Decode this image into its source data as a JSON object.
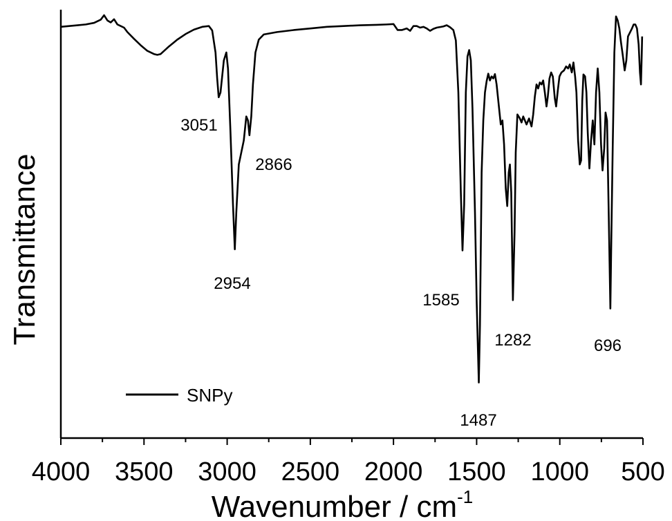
{
  "chart_data": {
    "type": "line",
    "xlabel": "Wavenumber / cm",
    "xlabel_sup": "-1",
    "ylabel": "Transmittance",
    "xlim": [
      4000,
      500
    ],
    "x_reversed": true,
    "ylim": [
      0,
      100
    ],
    "y_ticks_shown": false,
    "grid": false,
    "legend_position": "bottom-left",
    "x_ticks": [
      {
        "value": 4000,
        "label": "4000"
      },
      {
        "value": 3500,
        "label": "3500"
      },
      {
        "value": 3000,
        "label": "3000"
      },
      {
        "value": 2500,
        "label": "2500"
      },
      {
        "value": 2000,
        "label": "2000"
      },
      {
        "value": 1500,
        "label": "1500"
      },
      {
        "value": 1000,
        "label": "1000"
      },
      {
        "value": 500,
        "label": "500"
      }
    ],
    "series": [
      {
        "name": "SNPy",
        "color": "#000000",
        "points": [
          [
            4000,
            96.4
          ],
          [
            3950,
            96.6
          ],
          [
            3900,
            96.8
          ],
          [
            3850,
            97.0
          ],
          [
            3800,
            97.4
          ],
          [
            3760,
            98.2
          ],
          [
            3740,
            99.3
          ],
          [
            3720,
            98.0
          ],
          [
            3700,
            97.5
          ],
          [
            3680,
            98.3
          ],
          [
            3660,
            97.0
          ],
          [
            3640,
            96.6
          ],
          [
            3620,
            96.2
          ],
          [
            3600,
            95.1
          ],
          [
            3560,
            93.4
          ],
          [
            3520,
            91.8
          ],
          [
            3480,
            90.4
          ],
          [
            3440,
            89.6
          ],
          [
            3420,
            89.4
          ],
          [
            3400,
            89.6
          ],
          [
            3350,
            91.5
          ],
          [
            3300,
            93.2
          ],
          [
            3250,
            94.6
          ],
          [
            3200,
            95.7
          ],
          [
            3150,
            96.4
          ],
          [
            3110,
            96.6
          ],
          [
            3090,
            95.5
          ],
          [
            3070,
            90.0
          ],
          [
            3060,
            83.5
          ],
          [
            3051,
            78.8
          ],
          [
            3040,
            80.0
          ],
          [
            3020,
            88.0
          ],
          [
            3005,
            90.0
          ],
          [
            2995,
            86.0
          ],
          [
            2980,
            70.0
          ],
          [
            2965,
            52.0
          ],
          [
            2954,
            40.8
          ],
          [
            2945,
            50.0
          ],
          [
            2930,
            62.0
          ],
          [
            2915,
            65.0
          ],
          [
            2900,
            68.0
          ],
          [
            2885,
            74.0
          ],
          [
            2875,
            73.0
          ],
          [
            2866,
            69.3
          ],
          [
            2855,
            74.0
          ],
          [
            2845,
            82.0
          ],
          [
            2830,
            90.0
          ],
          [
            2810,
            93.2
          ],
          [
            2780,
            94.5
          ],
          [
            2700,
            95.1
          ],
          [
            2600,
            95.6
          ],
          [
            2500,
            96.0
          ],
          [
            2400,
            96.4
          ],
          [
            2300,
            96.6
          ],
          [
            2200,
            96.8
          ],
          [
            2100,
            96.9
          ],
          [
            2040,
            97.0
          ],
          [
            2000,
            97.1
          ],
          [
            1990,
            96.5
          ],
          [
            1975,
            95.6
          ],
          [
            1950,
            95.6
          ],
          [
            1920,
            96.0
          ],
          [
            1900,
            95.4
          ],
          [
            1880,
            96.6
          ],
          [
            1860,
            96.6
          ],
          [
            1840,
            96.2
          ],
          [
            1820,
            96.4
          ],
          [
            1800,
            96.0
          ],
          [
            1780,
            95.4
          ],
          [
            1760,
            95.9
          ],
          [
            1740,
            96.2
          ],
          [
            1700,
            96.5
          ],
          [
            1680,
            96.8
          ],
          [
            1660,
            96.3
          ],
          [
            1640,
            95.6
          ],
          [
            1625,
            93.0
          ],
          [
            1610,
            80.0
          ],
          [
            1595,
            55.0
          ],
          [
            1585,
            40.5
          ],
          [
            1575,
            52.0
          ],
          [
            1565,
            80.0
          ],
          [
            1555,
            89.0
          ],
          [
            1545,
            90.6
          ],
          [
            1535,
            88.0
          ],
          [
            1525,
            76.0
          ],
          [
            1510,
            50.0
          ],
          [
            1500,
            28.0
          ],
          [
            1495,
            20.0
          ],
          [
            1487,
            7.5
          ],
          [
            1480,
            22.0
          ],
          [
            1470,
            60.0
          ],
          [
            1460,
            73.0
          ],
          [
            1450,
            80.0
          ],
          [
            1440,
            82.8
          ],
          [
            1430,
            84.7
          ],
          [
            1420,
            83.0
          ],
          [
            1410,
            84.0
          ],
          [
            1400,
            83.5
          ],
          [
            1390,
            84.6
          ],
          [
            1380,
            82.0
          ],
          [
            1365,
            76.0
          ],
          [
            1355,
            72.0
          ],
          [
            1345,
            73.0
          ],
          [
            1335,
            67.0
          ],
          [
            1325,
            56.0
          ],
          [
            1316,
            51.6
          ],
          [
            1307,
            60.0
          ],
          [
            1300,
            62.0
          ],
          [
            1292,
            55.0
          ],
          [
            1282,
            28.1
          ],
          [
            1272,
            45.0
          ],
          [
            1265,
            65.0
          ],
          [
            1255,
            74.5
          ],
          [
            1240,
            73.5
          ],
          [
            1230,
            72.5
          ],
          [
            1220,
            74.0
          ],
          [
            1200,
            72.0
          ],
          [
            1185,
            73.5
          ],
          [
            1170,
            71.5
          ],
          [
            1160,
            74.5
          ],
          [
            1150,
            79.0
          ],
          [
            1140,
            82.0
          ],
          [
            1130,
            81.0
          ],
          [
            1120,
            82.5
          ],
          [
            1110,
            82.0
          ],
          [
            1100,
            83.0
          ],
          [
            1090,
            80.0
          ],
          [
            1080,
            76.5
          ],
          [
            1072,
            79.0
          ],
          [
            1062,
            83.5
          ],
          [
            1052,
            85.0
          ],
          [
            1042,
            84.0
          ],
          [
            1030,
            78.5
          ],
          [
            1022,
            76.5
          ],
          [
            1012,
            80.5
          ],
          [
            1002,
            84.0
          ],
          [
            990,
            85.0
          ],
          [
            975,
            85.5
          ],
          [
            962,
            86.5
          ],
          [
            950,
            86.0
          ],
          [
            940,
            87.0
          ],
          [
            928,
            85.0
          ],
          [
            918,
            87.5
          ],
          [
            908,
            84.0
          ],
          [
            900,
            80.0
          ],
          [
            890,
            68.0
          ],
          [
            880,
            62.0
          ],
          [
            872,
            63.0
          ],
          [
            865,
            78.0
          ],
          [
            858,
            84.5
          ],
          [
            848,
            84.0
          ],
          [
            840,
            80.0
          ],
          [
            832,
            70.0
          ],
          [
            822,
            61.0
          ],
          [
            812,
            68.0
          ],
          [
            802,
            73.0
          ],
          [
            792,
            67.0
          ],
          [
            782,
            80.0
          ],
          [
            772,
            86.0
          ],
          [
            762,
            80.0
          ],
          [
            752,
            67.0
          ],
          [
            743,
            60.5
          ],
          [
            733,
            66.0
          ],
          [
            725,
            75.0
          ],
          [
            716,
            73.0
          ],
          [
            706,
            50.0
          ],
          [
            696,
            26.0
          ],
          [
            690,
            44.0
          ],
          [
            682,
            66.0
          ],
          [
            672,
            90.0
          ],
          [
            662,
            99.0
          ],
          [
            652,
            98.0
          ],
          [
            642,
            96.0
          ],
          [
            632,
            92.5
          ],
          [
            622,
            89.5
          ],
          [
            610,
            85.5
          ],
          [
            600,
            88.0
          ],
          [
            590,
            94.0
          ],
          [
            578,
            95.0
          ],
          [
            566,
            96.0
          ],
          [
            556,
            97.0
          ],
          [
            546,
            97.0
          ],
          [
            536,
            96.0
          ],
          [
            526,
            92.0
          ],
          [
            518,
            85.0
          ],
          [
            512,
            82.0
          ],
          [
            507,
            90.0
          ],
          [
            505,
            94.0
          ]
        ]
      }
    ],
    "annotations": [
      {
        "text": "3051"
      },
      {
        "text": "2866"
      },
      {
        "text": "2954"
      },
      {
        "text": "1585"
      },
      {
        "text": "1487"
      },
      {
        "text": "1282"
      },
      {
        "text": "696"
      }
    ]
  }
}
